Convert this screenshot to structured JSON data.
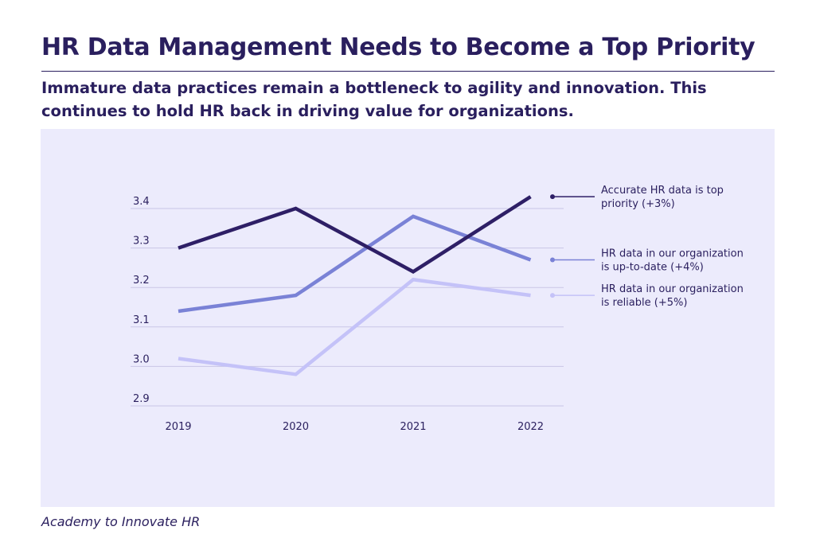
{
  "title": "HR Data Management Needs to Become a Top Priority",
  "subtitle": "Immature data practices remain a bottleneck to agility and innovation. This continues to hold HR back in driving value for organizations.",
  "source": "Academy to Innovate HR",
  "colors": {
    "background_panel": "#ecebfc",
    "text": "#2a1f5e",
    "series_1": "#2e1f66",
    "series_2": "#7a82d6",
    "series_3": "#c4c2f8",
    "grid": "#c9c6e6"
  },
  "chart_data": {
    "type": "line",
    "categories": [
      "2019",
      "2020",
      "2021",
      "2022"
    ],
    "y_ticks": [
      "2.9",
      "3.0",
      "3.1",
      "3.2",
      "3.3",
      "3.4"
    ],
    "ylim": [
      2.9,
      3.4
    ],
    "grid": true,
    "legend_placement": "right",
    "series": [
      {
        "name_lines": [
          "Accurate HR data is top",
          "priority (+3%)"
        ],
        "values": [
          3.3,
          3.4,
          3.24,
          3.43
        ],
        "color": "#2e1f66"
      },
      {
        "name_lines": [
          "HR data in our organization",
          "is up-to-date (+4%)"
        ],
        "values": [
          3.14,
          3.18,
          3.38,
          3.27
        ],
        "color": "#7a82d6"
      },
      {
        "name_lines": [
          "HR data in our organization",
          "is reliable (+5%)"
        ],
        "values": [
          3.02,
          2.98,
          3.22,
          3.18
        ],
        "color": "#c4c2f8"
      }
    ]
  }
}
